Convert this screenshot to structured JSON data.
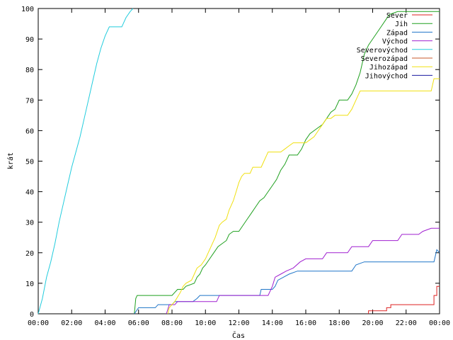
{
  "chart_data": {
    "type": "line",
    "xlabel": "Čas",
    "ylabel": "krát",
    "ylim": [
      0,
      100
    ],
    "xlim_minutes": [
      0,
      1440
    ],
    "x_ticks": [
      "00:00",
      "02:00",
      "04:00",
      "06:00",
      "08:00",
      "10:00",
      "12:00",
      "14:00",
      "16:00",
      "18:00",
      "20:00",
      "22:00",
      "00:00"
    ],
    "y_ticks": [
      0,
      10,
      20,
      30,
      40,
      50,
      60,
      70,
      80,
      90,
      100
    ],
    "grid": false,
    "legend_position": "top-right",
    "series": [
      {
        "name": "Sever",
        "color": "#dd2222",
        "points": [
          [
            "19:45",
            0
          ],
          [
            "19:45",
            1
          ],
          [
            "20:50",
            1
          ],
          [
            "20:50",
            2
          ],
          [
            "21:05",
            2
          ],
          [
            "21:05",
            3
          ],
          [
            "23:40",
            3
          ],
          [
            "23:40",
            6
          ],
          [
            "23:50",
            6
          ],
          [
            "23:50",
            9
          ],
          [
            "24:00",
            9
          ]
        ]
      },
      {
        "name": "Jih",
        "color": "#1fa01f",
        "points": [
          [
            "05:45",
            0
          ],
          [
            "05:50",
            5
          ],
          [
            "05:55",
            6
          ],
          [
            "08:00",
            6
          ],
          [
            "08:10",
            7
          ],
          [
            "08:20",
            8
          ],
          [
            "08:40",
            8
          ],
          [
            "08:50",
            9
          ],
          [
            "09:20",
            10
          ],
          [
            "09:30",
            12
          ],
          [
            "09:40",
            13
          ],
          [
            "09:50",
            15
          ],
          [
            "10:00",
            16
          ],
          [
            "10:15",
            18
          ],
          [
            "10:30",
            20
          ],
          [
            "10:45",
            22
          ],
          [
            "11:00",
            23
          ],
          [
            "11:15",
            24
          ],
          [
            "11:25",
            26
          ],
          [
            "11:40",
            27
          ],
          [
            "12:00",
            27
          ],
          [
            "12:15",
            29
          ],
          [
            "12:30",
            31
          ],
          [
            "12:45",
            33
          ],
          [
            "13:00",
            35
          ],
          [
            "13:15",
            37
          ],
          [
            "13:30",
            38
          ],
          [
            "13:45",
            40
          ],
          [
            "14:00",
            42
          ],
          [
            "14:15",
            44
          ],
          [
            "14:30",
            47
          ],
          [
            "14:45",
            49
          ],
          [
            "15:00",
            52
          ],
          [
            "15:30",
            52
          ],
          [
            "15:45",
            54
          ],
          [
            "16:00",
            57
          ],
          [
            "16:15",
            59
          ],
          [
            "16:30",
            60
          ],
          [
            "17:00",
            62
          ],
          [
            "17:15",
            64
          ],
          [
            "17:30",
            66
          ],
          [
            "17:45",
            67
          ],
          [
            "18:00",
            70
          ],
          [
            "18:30",
            70
          ],
          [
            "18:45",
            72
          ],
          [
            "19:00",
            75
          ],
          [
            "19:15",
            79
          ],
          [
            "19:30",
            85
          ],
          [
            "19:45",
            88
          ],
          [
            "20:00",
            90
          ],
          [
            "20:15",
            92
          ],
          [
            "20:30",
            94
          ],
          [
            "20:45",
            96
          ],
          [
            "21:00",
            98
          ],
          [
            "21:30",
            99
          ],
          [
            "24:00",
            99
          ]
        ]
      },
      {
        "name": "Západ",
        "color": "#1f75c8",
        "points": [
          [
            "05:45",
            0
          ],
          [
            "06:00",
            2
          ],
          [
            "07:00",
            2
          ],
          [
            "07:10",
            3
          ],
          [
            "08:00",
            3
          ],
          [
            "08:10",
            4
          ],
          [
            "09:15",
            4
          ],
          [
            "09:30",
            5
          ],
          [
            "09:40",
            6
          ],
          [
            "13:15",
            6
          ],
          [
            "13:20",
            8
          ],
          [
            "14:00",
            8
          ],
          [
            "14:10",
            9
          ],
          [
            "14:20",
            11
          ],
          [
            "14:40",
            12
          ],
          [
            "15:00",
            13
          ],
          [
            "15:30",
            14
          ],
          [
            "18:45",
            14
          ],
          [
            "19:00",
            16
          ],
          [
            "19:30",
            17
          ],
          [
            "23:40",
            17
          ],
          [
            "23:50",
            21
          ],
          [
            "24:00",
            20
          ]
        ]
      },
      {
        "name": "Východ",
        "color": "#a020d0",
        "points": [
          [
            "07:40",
            0
          ],
          [
            "07:50",
            3
          ],
          [
            "08:10",
            3
          ],
          [
            "08:20",
            4
          ],
          [
            "10:40",
            4
          ],
          [
            "10:50",
            6
          ],
          [
            "13:45",
            6
          ],
          [
            "14:00",
            9
          ],
          [
            "14:10",
            12
          ],
          [
            "14:30",
            13
          ],
          [
            "14:50",
            14
          ],
          [
            "15:15",
            15
          ],
          [
            "15:40",
            17
          ],
          [
            "16:00",
            18
          ],
          [
            "17:00",
            18
          ],
          [
            "17:15",
            20
          ],
          [
            "18:30",
            20
          ],
          [
            "18:45",
            22
          ],
          [
            "19:45",
            22
          ],
          [
            "20:00",
            24
          ],
          [
            "21:30",
            24
          ],
          [
            "21:45",
            26
          ],
          [
            "22:45",
            26
          ],
          [
            "23:00",
            27
          ],
          [
            "23:30",
            28
          ],
          [
            "24:00",
            28
          ]
        ]
      },
      {
        "name": "Severovýchod",
        "color": "#22ccdd",
        "points": [
          [
            "00:00",
            0
          ],
          [
            "00:15",
            5
          ],
          [
            "00:30",
            12
          ],
          [
            "00:45",
            17
          ],
          [
            "01:00",
            23
          ],
          [
            "01:15",
            30
          ],
          [
            "01:30",
            36
          ],
          [
            "01:45",
            42
          ],
          [
            "02:00",
            48
          ],
          [
            "02:15",
            53
          ],
          [
            "02:30",
            58
          ],
          [
            "02:45",
            64
          ],
          [
            "03:00",
            70
          ],
          [
            "03:15",
            76
          ],
          [
            "03:30",
            82
          ],
          [
            "03:45",
            87
          ],
          [
            "04:00",
            91
          ],
          [
            "04:15",
            94
          ],
          [
            "05:00",
            94
          ],
          [
            "05:15",
            97
          ],
          [
            "05:30",
            99
          ],
          [
            "05:40",
            100
          ]
        ]
      },
      {
        "name": "Severozápad",
        "color": "#c85a2a",
        "points": []
      },
      {
        "name": "Jihozápad",
        "color": "#f0e010",
        "points": [
          [
            "07:45",
            0
          ],
          [
            "07:50",
            2
          ],
          [
            "08:10",
            4
          ],
          [
            "08:30",
            7
          ],
          [
            "08:40",
            9
          ],
          [
            "08:50",
            10
          ],
          [
            "09:10",
            11
          ],
          [
            "09:20",
            13
          ],
          [
            "09:30",
            15
          ],
          [
            "09:45",
            16
          ],
          [
            "10:00",
            18
          ],
          [
            "10:10",
            20
          ],
          [
            "10:20",
            22
          ],
          [
            "10:35",
            25
          ],
          [
            "10:50",
            29
          ],
          [
            "11:00",
            30
          ],
          [
            "11:15",
            31
          ],
          [
            "11:25",
            34
          ],
          [
            "11:40",
            37
          ],
          [
            "11:50",
            40
          ],
          [
            "12:00",
            43
          ],
          [
            "12:10",
            45
          ],
          [
            "12:20",
            46
          ],
          [
            "12:40",
            46
          ],
          [
            "12:50",
            48
          ],
          [
            "13:20",
            48
          ],
          [
            "13:30",
            50
          ],
          [
            "13:45",
            53
          ],
          [
            "14:30",
            53
          ],
          [
            "14:45",
            54
          ],
          [
            "15:00",
            55
          ],
          [
            "15:15",
            56
          ],
          [
            "16:00",
            56
          ],
          [
            "16:15",
            57
          ],
          [
            "16:30",
            58
          ],
          [
            "16:45",
            60
          ],
          [
            "17:00",
            62
          ],
          [
            "17:15",
            64
          ],
          [
            "17:30",
            64
          ],
          [
            "17:45",
            65
          ],
          [
            "18:30",
            65
          ],
          [
            "18:45",
            67
          ],
          [
            "19:00",
            70
          ],
          [
            "19:15",
            73
          ],
          [
            "23:30",
            73
          ],
          [
            "23:40",
            77
          ],
          [
            "24:00",
            77
          ]
        ]
      },
      {
        "name": "Jihovýchod",
        "color": "#1a1aa0",
        "points": []
      }
    ]
  }
}
